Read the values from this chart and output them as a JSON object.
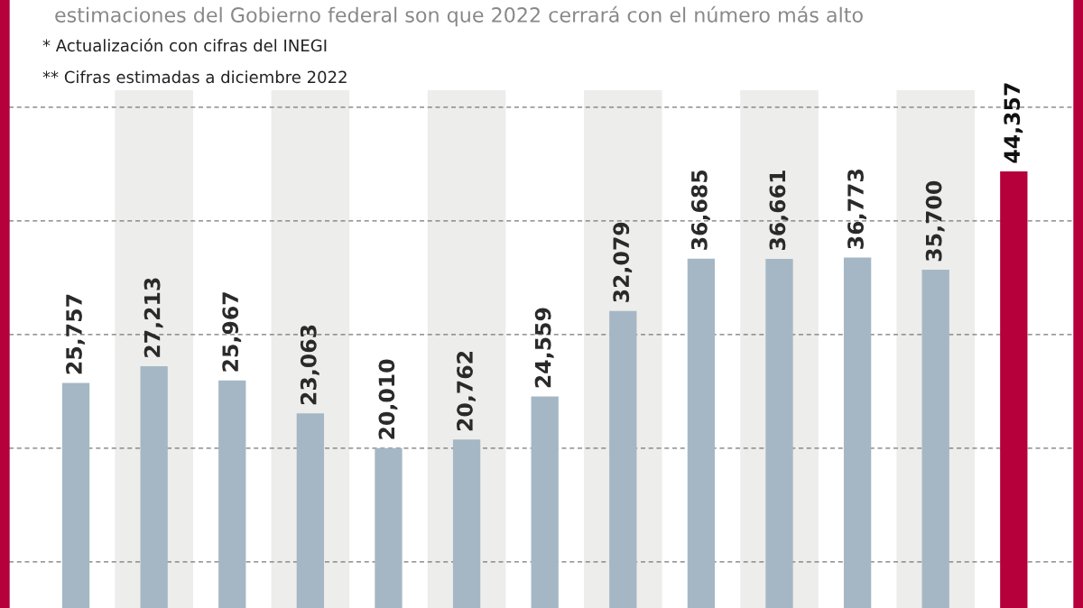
{
  "chart_data": {
    "type": "bar",
    "title": "estimaciones del Gobierno federal son que 2022 cerrará con el número más alto",
    "annotations": [
      "* Actualización con cifras del INEGI",
      "** Cifras estimadas a diciembre 2022"
    ],
    "categories": [
      null,
      null,
      null,
      null,
      null,
      null,
      null,
      null,
      null,
      null,
      null,
      null,
      null
    ],
    "values": [
      25757,
      27213,
      25967,
      23063,
      20010,
      20762,
      24559,
      32079,
      36685,
      36661,
      36773,
      35700,
      44357
    ],
    "colors": [
      "#a5b7c5",
      "#a5b7c5",
      "#a5b7c5",
      "#a5b7c5",
      "#a5b7c5",
      "#a5b7c5",
      "#a5b7c5",
      "#a5b7c5",
      "#a5b7c5",
      "#a5b7c5",
      "#a5b7c5",
      "#a5b7c5",
      "#b5003b"
    ],
    "value_labels": [
      "25,757",
      "27,213",
      "25,967",
      "23,063",
      "20,010",
      "20,762",
      "24,559",
      "32,079",
      "36,685",
      "36,661",
      "36,773",
      "35,700",
      "44,357"
    ],
    "ylim": [
      5950,
      51500
    ],
    "yticks": [
      {
        "value": 10000,
        "label": null
      },
      {
        "value": 20000,
        "label": null
      },
      {
        "value": 30000,
        "label": null
      },
      {
        "value": 40000,
        "label": null
      },
      {
        "value": 50000,
        "label": null
      }
    ],
    "grid": "y",
    "line_style": "dashed"
  }
}
